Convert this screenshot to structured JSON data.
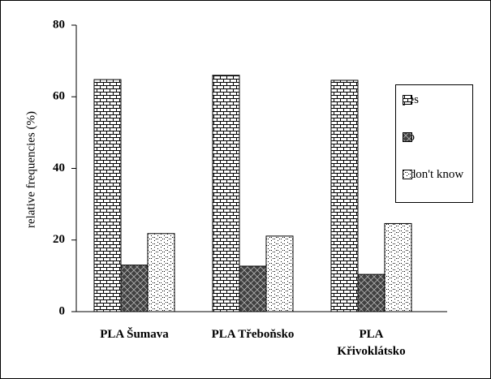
{
  "chart_data": {
    "type": "bar",
    "y_label": "relative frequencies (%)",
    "categories": [
      "PLA Šumava",
      "PLA Třeboňsko",
      "PLA Křivoklátsko"
    ],
    "series": [
      {
        "name": "yes",
        "color": "#000000",
        "values": [
          64.8,
          66,
          64.6
        ]
      },
      {
        "name": "no",
        "color": "#000000",
        "values": [
          13,
          12.7,
          10.4
        ]
      },
      {
        "name": "I don't know",
        "color": "#000000",
        "values": [
          21.8,
          21.1,
          24.6
        ]
      }
    ],
    "ylim": [
      0,
      80
    ],
    "yticks": [
      0,
      20,
      40,
      60,
      80
    ],
    "legend": "right"
  }
}
